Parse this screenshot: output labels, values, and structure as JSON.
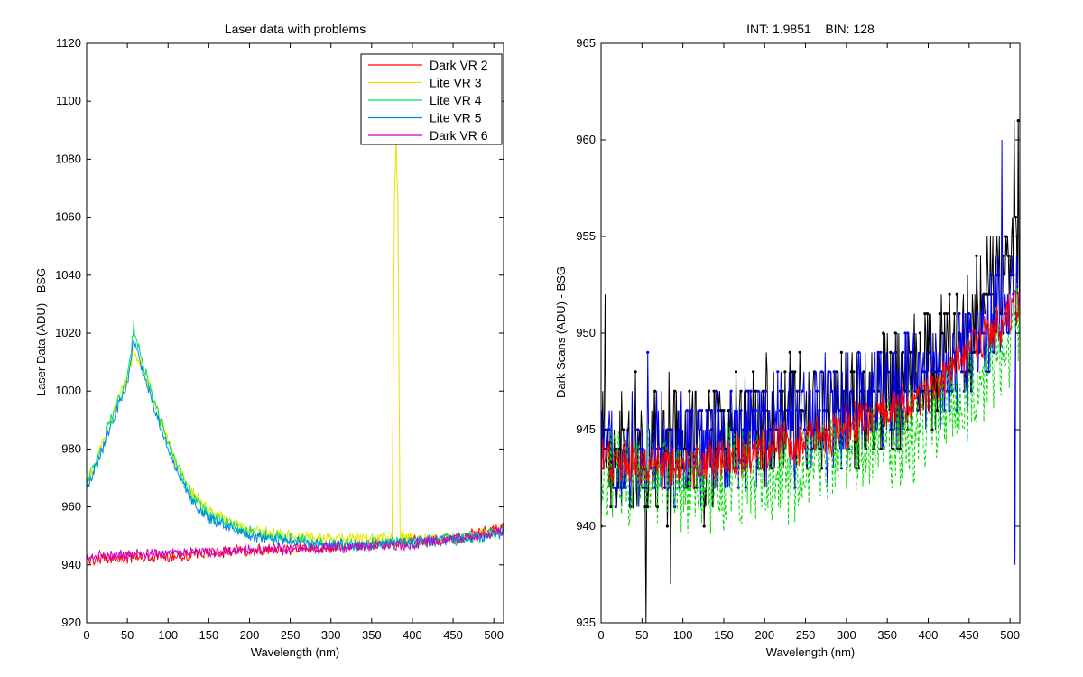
{
  "chart_data": [
    {
      "type": "line",
      "title": "Laser data with problems",
      "xlabel": "Wavelength (nm)",
      "ylabel": "Laser Data (ADU) - BSG",
      "xlim": [
        0,
        512
      ],
      "ylim": [
        920,
        1120
      ],
      "xticks": [
        0,
        50,
        100,
        150,
        200,
        250,
        300,
        350,
        400,
        450,
        500
      ],
      "yticks": [
        920,
        940,
        960,
        980,
        1000,
        1020,
        1040,
        1060,
        1080,
        1100,
        1120
      ],
      "legend_position": "top-right",
      "series": [
        {
          "name": "Dark VR 2",
          "color": "#ff0000",
          "kind": "dark",
          "amp": 1.8,
          "x": [
            0,
            100,
            200,
            300,
            400,
            450,
            500,
            512
          ],
          "y": [
            942,
            943,
            945,
            946,
            948,
            949,
            952,
            953
          ]
        },
        {
          "name": "Lite VR 3",
          "color": "#e6e600",
          "kind": "lite",
          "amp": 1.8,
          "x": [
            0,
            20,
            40,
            50,
            58,
            70,
            90,
            110,
            130,
            150,
            200,
            250,
            300,
            350,
            375,
            378,
            380,
            382,
            385,
            400,
            450,
            500,
            512
          ],
          "y": [
            968,
            982,
            998,
            1004,
            1014,
            1008,
            990,
            975,
            965,
            959,
            952,
            950,
            949,
            949,
            950,
            1068,
            1086,
            1068,
            950,
            949,
            949,
            951,
            952
          ]
        },
        {
          "name": "Lite VR 4",
          "color": "#00e060",
          "kind": "lite",
          "amp": 2.0,
          "x": [
            0,
            20,
            40,
            50,
            58,
            70,
            90,
            110,
            130,
            150,
            200,
            250,
            300,
            350,
            400,
            450,
            500,
            512
          ],
          "y": [
            968,
            982,
            998,
            1004,
            1022,
            1008,
            990,
            975,
            963,
            957,
            951,
            949,
            947,
            947,
            948,
            949,
            951,
            952
          ]
        },
        {
          "name": "Lite VR 5",
          "color": "#0088ee",
          "kind": "lite",
          "amp": 1.6,
          "x": [
            0,
            20,
            40,
            50,
            58,
            70,
            90,
            110,
            130,
            150,
            200,
            250,
            300,
            350,
            400,
            450,
            500,
            512
          ],
          "y": [
            966,
            980,
            996,
            1002,
            1018,
            1006,
            988,
            973,
            962,
            956,
            950,
            948,
            947,
            947,
            948,
            949,
            950,
            951
          ]
        },
        {
          "name": "Dark VR 6",
          "color": "#cc00cc",
          "kind": "dark",
          "amp": 1.6,
          "x": [
            0,
            100,
            200,
            300,
            400,
            450,
            500,
            512
          ],
          "y": [
            943,
            944,
            945,
            946,
            947,
            949,
            951,
            952
          ]
        }
      ]
    },
    {
      "type": "line",
      "title": "INT: 1.9851    BIN: 128",
      "xlabel": "Wavelength (nm)",
      "ylabel": "Dark Scans (ADU) - BSG",
      "xlim": [
        0,
        512
      ],
      "ylim": [
        935,
        965
      ],
      "xticks": [
        0,
        50,
        100,
        150,
        200,
        250,
        300,
        350,
        400,
        450,
        500
      ],
      "yticks": [
        935,
        940,
        945,
        950,
        955,
        960,
        965
      ],
      "series": [
        {
          "color": "#000000",
          "dash": "",
          "marker": true,
          "quant": true,
          "amp": 3.0,
          "x": [
            0,
            100,
            200,
            300,
            400,
            450,
            500,
            512
          ],
          "y": [
            944,
            944,
            945,
            946,
            948,
            950,
            953,
            954
          ]
        },
        {
          "color": "#0000ff",
          "dash": "",
          "marker": true,
          "quant": true,
          "amp": 2.5,
          "x": [
            0,
            100,
            200,
            300,
            400,
            450,
            500,
            512
          ],
          "y": [
            944,
            944,
            945,
            946,
            947.5,
            949,
            952,
            953
          ]
        },
        {
          "color": "#00dd00",
          "dash": "4,3",
          "marker": false,
          "quant": false,
          "amp": 2.3,
          "x": [
            0,
            100,
            200,
            300,
            400,
            450,
            500,
            512
          ],
          "y": [
            943,
            942,
            942.5,
            943.5,
            945.5,
            947,
            949.5,
            951
          ]
        },
        {
          "color": "#ff0000",
          "dash": "",
          "marker": false,
          "quant": false,
          "amp": 1.0,
          "x": [
            0,
            100,
            200,
            300,
            400,
            450,
            500,
            512
          ],
          "y": [
            943.5,
            943,
            944,
            945,
            947,
            949,
            951,
            952
          ]
        }
      ]
    }
  ]
}
